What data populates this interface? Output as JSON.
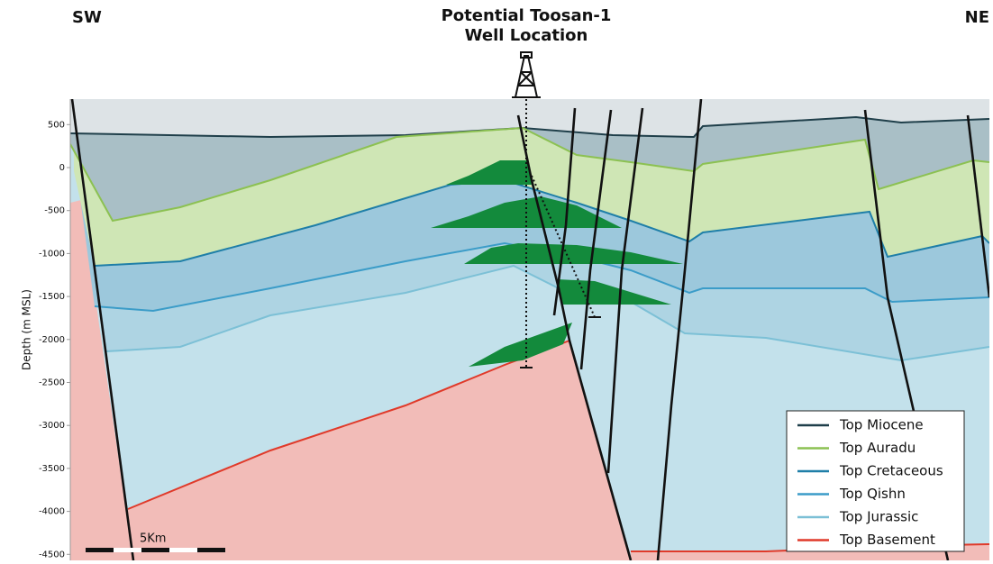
{
  "labels": {
    "left": "SW",
    "right": "NE",
    "well": [
      "Potential Toosan-1",
      "Well Location"
    ]
  },
  "axis": {
    "title": "Depth (m MSL)",
    "ticks": [
      500,
      0,
      -500,
      -1000,
      -1500,
      -2000,
      -2500,
      -3000,
      -3500,
      -4000,
      -4500
    ]
  },
  "legend": [
    {
      "label": "Top Miocene",
      "color": "#1f3f4a"
    },
    {
      "label": "Top Auradu",
      "color": "#8cc152"
    },
    {
      "label": "Top Cretaceous",
      "color": "#1f7fa8"
    },
    {
      "label": "Top Qishn",
      "color": "#3b9cc8"
    },
    {
      "label": "Top Jurassic",
      "color": "#7cc0d6"
    },
    {
      "label": "Top Basement",
      "color": "#e03a2a"
    }
  ],
  "scale_bar": "5Km"
}
